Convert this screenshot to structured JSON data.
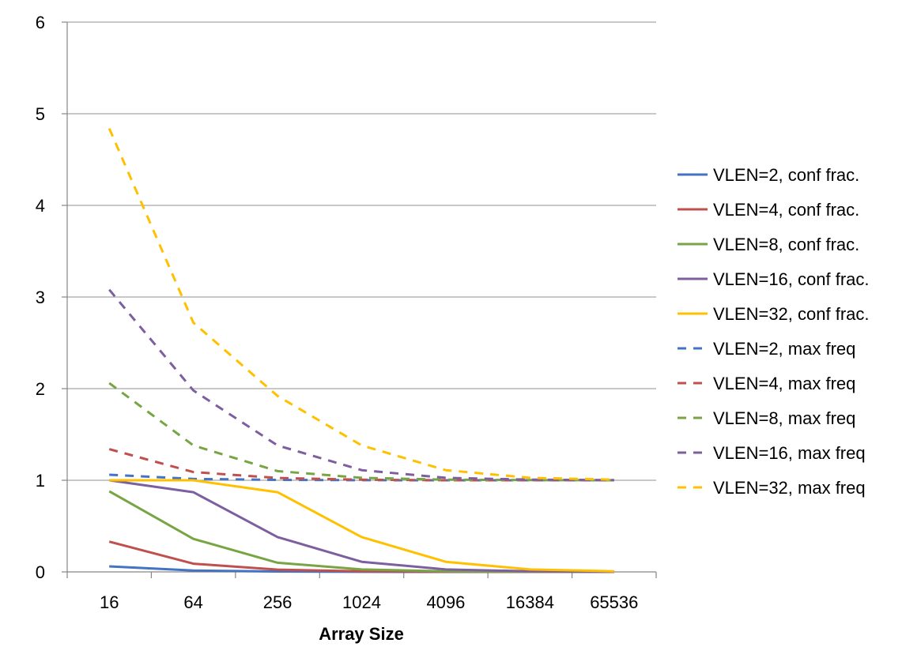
{
  "chart_data": {
    "type": "line",
    "xlabel": "Array Size",
    "ylabel": "",
    "title": "",
    "categories": [
      "16",
      "64",
      "256",
      "1024",
      "4096",
      "16384",
      "65536"
    ],
    "ylim": [
      0,
      6
    ],
    "yticks": [
      0,
      1,
      2,
      3,
      4,
      5,
      6
    ],
    "grid": "horizontal",
    "legend_position": "right",
    "series": [
      {
        "name": "VLEN=2, conf frac.",
        "color": "#4472C4",
        "dash": false,
        "values": [
          0.06,
          0.015,
          0.004,
          0.001,
          0.0003,
          0.0001,
          2e-05
        ]
      },
      {
        "name": "VLEN=4, conf frac.",
        "color": "#C0504D",
        "dash": false,
        "values": [
          0.33,
          0.09,
          0.025,
          0.006,
          0.0015,
          0.0004,
          0.0001
        ]
      },
      {
        "name": "VLEN=8, conf frac.",
        "color": "#77A544",
        "dash": false,
        "values": [
          0.88,
          0.36,
          0.1,
          0.027,
          0.007,
          0.002,
          0.0005
        ]
      },
      {
        "name": "VLEN=16, conf frac.",
        "color": "#7D5FA0",
        "dash": false,
        "values": [
          1.0,
          0.87,
          0.38,
          0.11,
          0.027,
          0.007,
          0.002
        ]
      },
      {
        "name": "VLEN=32, conf frac.",
        "color": "#FFC000",
        "dash": false,
        "values": [
          1.0,
          1.0,
          0.87,
          0.38,
          0.11,
          0.027,
          0.007
        ]
      },
      {
        "name": "VLEN=2, max freq",
        "color": "#4472C4",
        "dash": true,
        "values": [
          1.06,
          1.015,
          1.004,
          1.001,
          1.0,
          1.0,
          1.0
        ]
      },
      {
        "name": "VLEN=4, max freq",
        "color": "#C0504D",
        "dash": true,
        "values": [
          1.34,
          1.09,
          1.025,
          1.006,
          1.0,
          1.0,
          1.0
        ]
      },
      {
        "name": "VLEN=8, max freq",
        "color": "#77A544",
        "dash": true,
        "values": [
          2.06,
          1.38,
          1.1,
          1.027,
          1.007,
          1.002,
          1.0
        ]
      },
      {
        "name": "VLEN=16, max freq",
        "color": "#7D5FA0",
        "dash": true,
        "values": [
          3.08,
          1.98,
          1.38,
          1.11,
          1.027,
          1.007,
          1.002
        ]
      },
      {
        "name": "VLEN=32, max freq",
        "color": "#FFC000",
        "dash": true,
        "values": [
          4.84,
          2.72,
          1.92,
          1.38,
          1.11,
          1.027,
          1.007
        ]
      }
    ]
  }
}
